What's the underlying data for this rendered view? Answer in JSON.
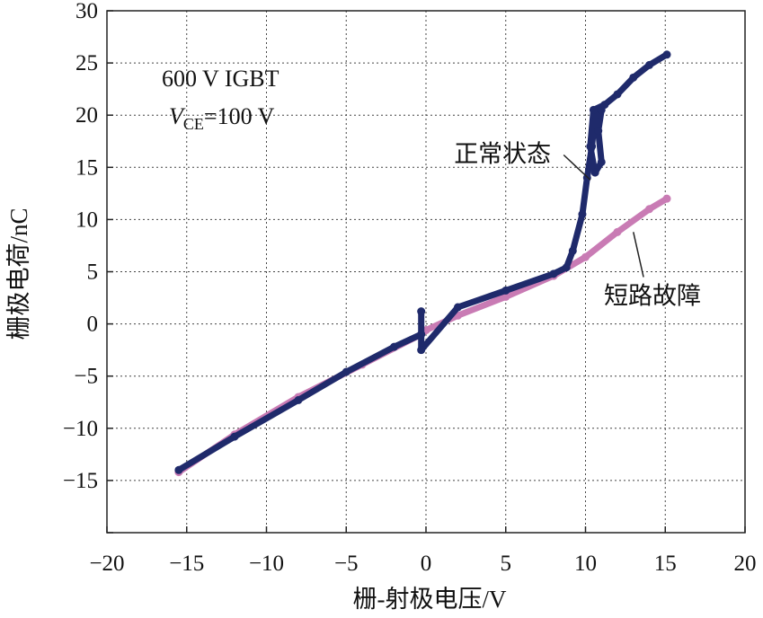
{
  "chart_data": {
    "type": "line",
    "xlabel": "栅-射极电压/V",
    "ylabel": "栅极电荷/nC",
    "xlim": [
      -20,
      20
    ],
    "ylim": [
      -20,
      30
    ],
    "xticks": [
      -20,
      -15,
      -10,
      -5,
      0,
      5,
      10,
      15,
      20
    ],
    "yticks": [
      -20,
      -15,
      -10,
      -5,
      0,
      5,
      10,
      15,
      20,
      25,
      30
    ],
    "xtick_labels": [
      "−20",
      "−15",
      "−10",
      "−5",
      "0",
      "5",
      "10",
      "15",
      "20"
    ],
    "ytick_labels": [
      "",
      "−15",
      "−10",
      "−5",
      "0",
      "5",
      "10",
      "15",
      "20",
      "25",
      "30"
    ],
    "grid": true,
    "annotation": {
      "line1": "600 V IGBT",
      "line2_var": "V",
      "line2_sub": "CE",
      "line2_rest": "=100 V"
    },
    "series": [
      {
        "name": "正常状态",
        "color": "#1f2a6b",
        "points": [
          [
            -15.5,
            -14.0
          ],
          [
            -12,
            -10.8
          ],
          [
            -8,
            -7.3
          ],
          [
            -5,
            -4.6
          ],
          [
            -2,
            -2.2
          ],
          [
            -0.3,
            -1.0
          ],
          [
            -0.3,
            1.2
          ],
          [
            -0.3,
            -2.5
          ],
          [
            2,
            1.6
          ],
          [
            5,
            3.2
          ],
          [
            8,
            4.8
          ],
          [
            8.8,
            5.4
          ],
          [
            9.2,
            7.0
          ],
          [
            9.8,
            10.5
          ],
          [
            10.1,
            14.0
          ],
          [
            10.4,
            17.0
          ],
          [
            10.6,
            20.0
          ],
          [
            11.0,
            20.5
          ],
          [
            10.8,
            18.5
          ],
          [
            11.0,
            15.5
          ],
          [
            10.6,
            14.5
          ],
          [
            10.3,
            17.0
          ],
          [
            10.5,
            20.5
          ],
          [
            11.2,
            21.0
          ],
          [
            12,
            22.0
          ],
          [
            13,
            23.6
          ],
          [
            14,
            24.8
          ],
          [
            15.1,
            25.8
          ]
        ]
      },
      {
        "name": "短路故障",
        "color": "#c97bb4",
        "points": [
          [
            -15.5,
            -14.2
          ],
          [
            -12,
            -10.6
          ],
          [
            -8,
            -7.0
          ],
          [
            -4,
            -3.9
          ],
          [
            -0.3,
            -1.0
          ],
          [
            0,
            -0.6
          ],
          [
            2,
            0.8
          ],
          [
            5,
            2.6
          ],
          [
            8,
            4.6
          ],
          [
            10,
            6.4
          ],
          [
            12,
            8.8
          ],
          [
            14,
            11.0
          ],
          [
            15.1,
            12.0
          ]
        ]
      }
    ],
    "callouts": [
      {
        "series": "正常状态",
        "label": "正常状态",
        "label_at": [
          4.8,
          15.5
        ],
        "points_to": [
          10.3,
          13.8
        ]
      },
      {
        "series": "短路故障",
        "label": "短路故障",
        "label_at": [
          14.2,
          1.9
        ],
        "points_to": [
          13.0,
          8.8
        ]
      }
    ]
  }
}
